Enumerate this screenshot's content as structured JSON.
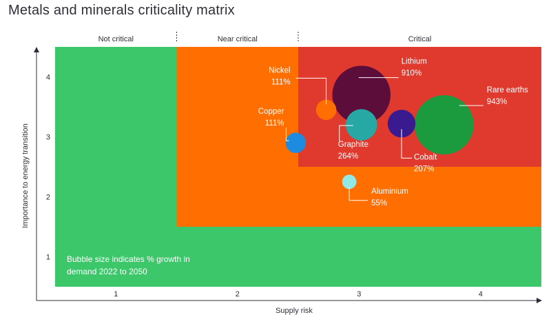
{
  "chart_data": {
    "type": "scatter",
    "title": "Metals and minerals criticality matrix",
    "xlabel": "Supply risk",
    "ylabel": "Importance to energy transition",
    "xlim": [
      0.5,
      4.5
    ],
    "ylim": [
      0.5,
      4.5
    ],
    "xticks": [
      "1",
      "2",
      "3",
      "4"
    ],
    "yticks": [
      "1",
      "2",
      "3",
      "4"
    ],
    "categories": [
      "Not critical",
      "Near critical",
      "Critical"
    ],
    "note": [
      "Bubble size indicates % growth in",
      "demand 2022 to 2050"
    ],
    "regions": [
      {
        "name": "not-critical",
        "color": "#3cc86a",
        "x": [
          0.5,
          4.5
        ],
        "y": [
          0.5,
          4.5
        ]
      },
      {
        "name": "near-critical",
        "color": "#ff6e00",
        "x": [
          1.5,
          4.5
        ],
        "y": [
          1.5,
          4.5
        ]
      },
      {
        "name": "critical",
        "color": "#e0392d",
        "x": [
          2.5,
          4.5
        ],
        "y": [
          2.5,
          4.5
        ]
      },
      {
        "name": "near-critical-band",
        "color": "#ff6e00",
        "x": [
          2.5,
          4.5
        ],
        "y": [
          1.5,
          2.5
        ]
      }
    ],
    "points": [
      {
        "name": "Lithium",
        "value": "910%",
        "growth": 910,
        "x": 3.02,
        "y": 3.7,
        "color": "#5c0d3a"
      },
      {
        "name": "Rare earths",
        "value": "943%",
        "growth": 943,
        "x": 3.7,
        "y": 3.2,
        "color": "#1b9a3e"
      },
      {
        "name": "Nickel",
        "value": "111%",
        "growth": 111,
        "x": 2.73,
        "y": 3.45,
        "color": "#ff6e00"
      },
      {
        "name": "Copper",
        "value": "111%",
        "growth": 111,
        "x": 2.48,
        "y": 2.9,
        "color": "#1c8be0"
      },
      {
        "name": "Graphite",
        "value": "264%",
        "growth": 264,
        "x": 3.02,
        "y": 3.2,
        "color": "#27a8a4"
      },
      {
        "name": "Cobalt",
        "value": "207%",
        "growth": 207,
        "x": 3.35,
        "y": 3.22,
        "color": "#3a1a8f"
      },
      {
        "name": "Aluminium",
        "value": "55%",
        "growth": 55,
        "x": 2.92,
        "y": 2.25,
        "color": "#92e8e4"
      }
    ]
  }
}
